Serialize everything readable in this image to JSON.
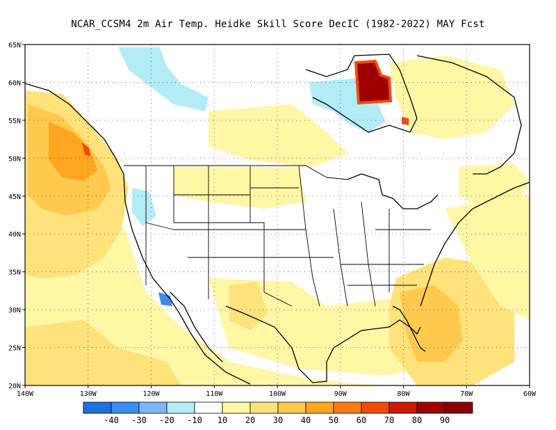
{
  "title": "NCAR_CCSM4  2m Air Temp. Heidke Skill Score DecIC (1982-2022) MAY Fcst",
  "axes": {
    "lon_labels": [
      "140W",
      "130W",
      "120W",
      "110W",
      "100W",
      "90W",
      "80W",
      "70W",
      "60W"
    ],
    "lon_values": [
      -140,
      -130,
      -120,
      -110,
      -100,
      -90,
      -80,
      -70,
      -60
    ],
    "lat_labels": [
      "65N",
      "60N",
      "55N",
      "50N",
      "45N",
      "40N",
      "35N",
      "30N",
      "25N",
      "20N"
    ],
    "lat_values": [
      65,
      60,
      55,
      50,
      45,
      40,
      35,
      30,
      25,
      20
    ],
    "lon_range": [
      -140,
      -60
    ],
    "lat_range": [
      20,
      65
    ],
    "grid": "dotted"
  },
  "colorbar": {
    "labels": [
      "-40",
      "-30",
      "-20",
      "-10",
      "10",
      "20",
      "30",
      "40",
      "50",
      "60",
      "70",
      "80",
      "90"
    ],
    "colors": [
      "#1e6fe0",
      "#3d8df0",
      "#7cb6f7",
      "#b4ecf6",
      "#ffffff",
      "#fff6a6",
      "#ffe27a",
      "#ffc94d",
      "#ffa51e",
      "#ff7a10",
      "#f24a0c",
      "#cc1b04",
      "#9c0000",
      "#8a0000"
    ]
  },
  "regions": {
    "alaska_canada_blue": "#b4ecf6",
    "hudson_bay_max": "#9c0000",
    "pacific_nw_orange": "#ffa51e",
    "southeast_orange": "#ffc94d"
  }
}
